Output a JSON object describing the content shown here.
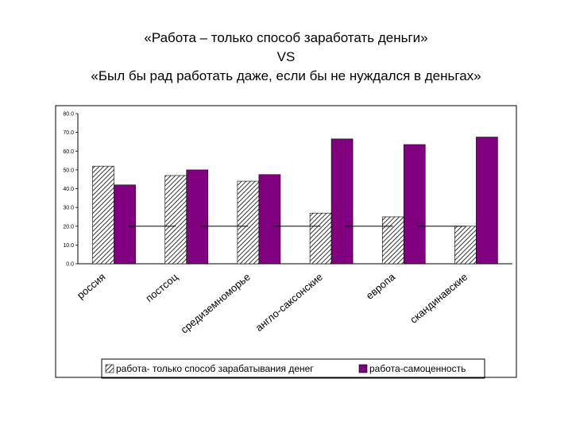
{
  "title": {
    "line1": "«Работа – только способ заработать деньги»",
    "line2": "VS",
    "line3": "«Был бы рад работать даже, если бы не нуждался в деньгах»"
  },
  "chart_data": {
    "type": "bar",
    "categories": [
      "россия",
      "постсоц",
      "средиземноморье",
      "англо-саксонские",
      "европа",
      "скандинавские"
    ],
    "series": [
      {
        "name": "работа- только способ зарабатывания денег",
        "values": [
          52,
          47,
          44,
          27,
          25,
          20
        ],
        "pattern": "hatched"
      },
      {
        "name": "работа-самоценность",
        "values": [
          42,
          50,
          47.5,
          66.5,
          63.5,
          67.5
        ],
        "color": "#800080"
      }
    ],
    "reference_lines": [
      20,
      20,
      20,
      20,
      20
    ],
    "ylim": [
      0,
      80
    ],
    "yticks": [
      "0.0",
      "10.0",
      "20.0",
      "30.0",
      "40.0",
      "50.0",
      "60.0",
      "70.0",
      "80.0"
    ],
    "grid": false,
    "legend": "bottom",
    "xlabel": "",
    "ylabel": ""
  }
}
